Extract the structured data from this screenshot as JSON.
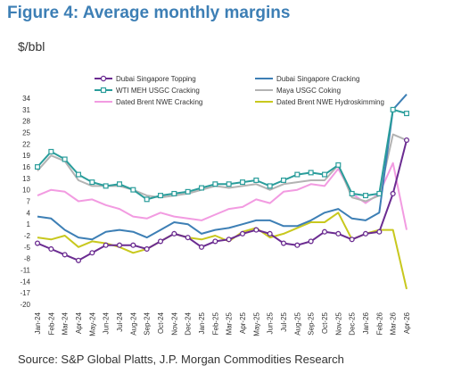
{
  "title": "Figure 4: Average monthly margins",
  "unit_label": "$/bbl",
  "source": "Source: S&P Global Platts, J.P. Morgan Commodities Research",
  "chart_data": {
    "type": "line",
    "title": "Figure 4: Average monthly margins",
    "ylabel": "$/bbl",
    "xlabel": "",
    "ylim": [
      -20,
      34
    ],
    "yticks": [
      34,
      31,
      28,
      25,
      22,
      19,
      16,
      13,
      10,
      7,
      4,
      1,
      -2,
      -5,
      -8,
      -11,
      -14,
      -17,
      -20
    ],
    "legend_position": "top",
    "grid": false,
    "categories": [
      "Jan-24",
      "Feb-24",
      "Mar-24",
      "Apr-24",
      "May-24",
      "Jun-24",
      "Jul-24",
      "Aug-24",
      "Sep-24",
      "Oct-24",
      "Nov-24",
      "Dec-24",
      "Jan-25",
      "Feb-25",
      "Mar-25",
      "Apr-25",
      "May-25",
      "Jun-25",
      "Jul-25",
      "Aug-25",
      "Sep-25",
      "Oct-25",
      "Nov-25",
      "Dec-25",
      "Jan-26",
      "Feb-26",
      "Mar-26",
      "Apr-26"
    ],
    "series": [
      {
        "name": "Dubai Singapore Topping",
        "color": "#6b2c91",
        "marker": "circle",
        "values": [
          -4,
          -5.5,
          -7,
          -8.5,
          -6.5,
          -4.5,
          -4.5,
          -4.5,
          -5.5,
          -3.5,
          -1.5,
          -2.5,
          -5,
          -3.5,
          -3,
          -1.5,
          -0.5,
          -1.5,
          -4,
          -4.5,
          -3.5,
          -1,
          -1.5,
          -3,
          -1.5,
          -1,
          9,
          23
        ]
      },
      {
        "name": "Dubai Singapore Cracking",
        "color": "#3d7fb5",
        "marker": "none",
        "values": [
          3,
          2.5,
          -0.5,
          -2.5,
          -3,
          -1,
          -0.5,
          -1,
          -2.5,
          -0.5,
          1.5,
          1,
          -1.5,
          -0.5,
          0,
          1,
          2,
          2,
          0.5,
          0.5,
          2,
          4,
          5,
          2.5,
          2,
          4,
          31,
          35
        ]
      },
      {
        "name": "WTI MEH USGC Cracking",
        "color": "#2a9d9b",
        "marker": "square",
        "values": [
          16,
          20,
          18,
          14,
          12,
          11,
          11.5,
          10,
          7.5,
          8.5,
          9,
          9.5,
          10.5,
          11.5,
          11.5,
          12,
          12.5,
          11,
          12.5,
          14,
          14.5,
          14,
          16.5,
          9,
          8.5,
          9,
          31,
          30
        ]
      },
      {
        "name": "Maya USGC Coking",
        "color": "#b3b3b3",
        "marker": "none",
        "values": [
          15,
          19,
          17.5,
          12.5,
          11,
          11,
          11,
          10,
          8.5,
          8,
          8.5,
          9,
          10,
          11,
          10.5,
          11,
          11.5,
          10,
          11.5,
          12,
          12.5,
          12.5,
          16.5,
          8,
          7,
          8.5,
          24.5,
          23
        ]
      },
      {
        "name": "Dated Brent NWE Cracking",
        "color": "#f29be1",
        "marker": "none",
        "values": [
          8.5,
          10,
          9.5,
          7,
          7.5,
          6,
          5,
          3,
          2.5,
          4,
          3,
          2.5,
          2,
          3.5,
          5,
          5.5,
          7.5,
          6.5,
          9.5,
          10,
          11.5,
          11,
          15.5,
          9,
          6.5,
          9,
          17,
          -0.5
        ]
      },
      {
        "name": "Dated Brent NWE Hydroskimming",
        "color": "#c8c81e",
        "marker": "none",
        "values": [
          -2.5,
          -3,
          -2,
          -5,
          -3.5,
          -4,
          -5,
          -6.5,
          -5.5,
          -3.5,
          -1.5,
          -2.5,
          -3,
          -2,
          -3.5,
          -1,
          0,
          -2.5,
          -1.5,
          0,
          1.5,
          1.5,
          4,
          -3,
          -1.5,
          -0.5,
          -0.5,
          -16
        ]
      }
    ]
  }
}
